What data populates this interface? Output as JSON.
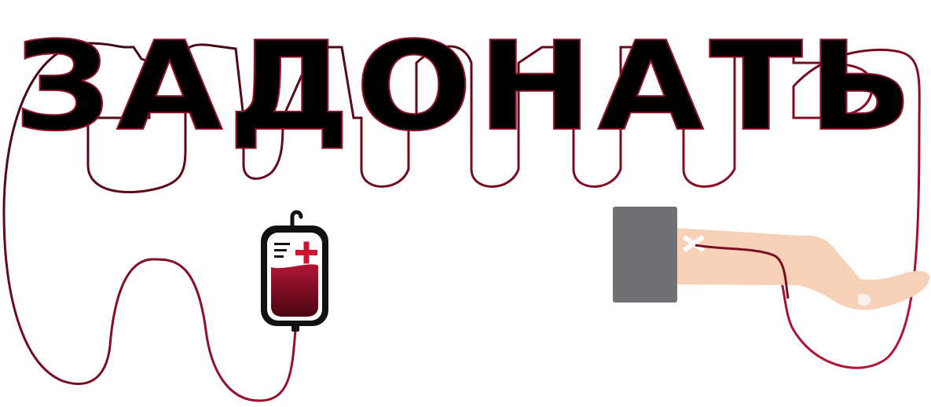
{
  "title": {
    "text": "ЗАДОНАТЬ"
  },
  "colors": {
    "title_fill": "#000000",
    "tube_outer": "#3d0612",
    "tube_inner": "#a0122e",
    "blood_dark": "#4a0510",
    "blood_light": "#b01535",
    "bag_outline": "#111111",
    "bag_fill": "#ffffff",
    "cross": "#d0132f",
    "sleeve": "#6f7174",
    "skin": "#f6d1b8",
    "tape": "#ffffff",
    "background": "#ffffff"
  },
  "icons": {
    "bag": "blood-bag-icon",
    "arm": "donor-arm-icon",
    "cross": "medical-cross-icon",
    "tape": "tape-x-icon"
  }
}
